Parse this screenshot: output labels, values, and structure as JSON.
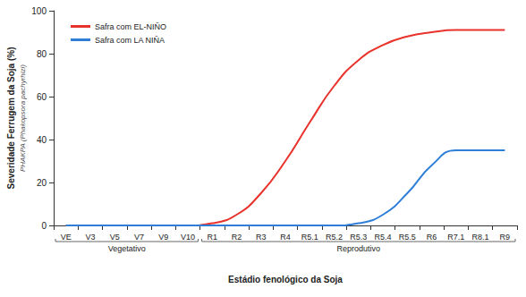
{
  "chart_data": {
    "type": "line",
    "y_label": "Severidade Ferrugem da Soja (%)",
    "y_sublabel": "PHAKPA (Phakopsora pachyrhizi)",
    "x_label": "Estádio fenológico da Soja",
    "categories": [
      "VE",
      "V3",
      "V5",
      "V7",
      "V9",
      "V10",
      "R1",
      "R2",
      "R3",
      "R4",
      "R5.1",
      "R5.2",
      "R5.3",
      "R5.4",
      "R5.5",
      "R6",
      "R7.1",
      "R8.1",
      "R9"
    ],
    "category_groups": [
      {
        "label": "Vegetativo",
        "from": "VE",
        "to": "V10"
      },
      {
        "label": "Reprodutivo",
        "from": "R1",
        "to": "R9"
      }
    ],
    "series": [
      {
        "name": "Safra com EL-NIÑO",
        "color": "#e8322b",
        "values": [
          0,
          0,
          0,
          0,
          0,
          0,
          1,
          5,
          15,
          30,
          48,
          65,
          77,
          84,
          88,
          90,
          91,
          91,
          91
        ]
      },
      {
        "name": "Safra com LA NIÑA",
        "color": "#2f7fd8",
        "values": [
          0,
          0,
          0,
          0,
          0,
          0,
          0,
          0,
          0,
          0,
          0,
          0,
          1,
          5,
          15,
          28,
          35,
          35,
          35
        ]
      }
    ],
    "ylim": [
      0,
      100
    ],
    "yticks": [
      0,
      20,
      40,
      60,
      80,
      100
    ],
    "grid": false,
    "legend": "upper left"
  }
}
